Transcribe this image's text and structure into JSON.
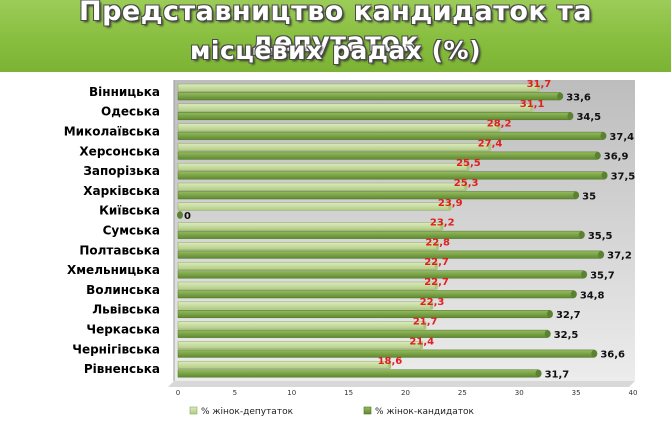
{
  "title": {
    "line1": "Представництво кандидаток та депутаток",
    "line2": "місцевих радах (%)"
  },
  "colors": {
    "banner": "#8cc63f",
    "deputies_bar": "#c5dc9a",
    "candidates_bar": "#7ea34a",
    "deputies_value_label": "#e0201e",
    "candidates_value_label": "#111111"
  },
  "chart_data": {
    "type": "bar",
    "orientation": "horizontal",
    "categories": [
      "Вінницька",
      "Одеська",
      "Миколаївська",
      "Херсонська",
      "Запорізька",
      "Харківська",
      "Київська",
      "Сумська",
      "Полтавська",
      "Хмельницька",
      "Волинська",
      "Львівська",
      "Черкаська",
      "Чернігівська",
      "Рівненська"
    ],
    "series": [
      {
        "name": "% жінок-депутаток",
        "values": [
          31.7,
          31.1,
          28.2,
          27.4,
          25.5,
          25.3,
          23.9,
          23.2,
          22.8,
          22.7,
          22.7,
          22.3,
          21.7,
          21.4,
          18.6
        ],
        "labels": [
          "31,7",
          "31,1",
          "28,2",
          "27,4",
          "25,5",
          "25,3",
          "23,9",
          "23,2",
          "22,8",
          "22,7",
          "22,7",
          "22,3",
          "21,7",
          "21,4",
          "18,6"
        ]
      },
      {
        "name": "% жінок-кандидаток",
        "values": [
          33.6,
          34.5,
          37.4,
          36.9,
          37.5,
          35,
          0,
          35.5,
          37.2,
          35.7,
          34.8,
          32.7,
          32.5,
          36.6,
          31.7
        ],
        "labels": [
          "33,6",
          "34,5",
          "37,4",
          "36,9",
          "37,5",
          "35",
          "0",
          "35,5",
          "37,2",
          "35,7",
          "34,8",
          "32,7",
          "32,5",
          "36,6",
          "31,7"
        ]
      }
    ],
    "xlim": [
      0,
      40
    ],
    "x_ticks": [
      "0",
      "5",
      "10",
      "15",
      "20",
      "25",
      "30",
      "35",
      "40"
    ],
    "grid": false,
    "legend_position": "bottom"
  }
}
